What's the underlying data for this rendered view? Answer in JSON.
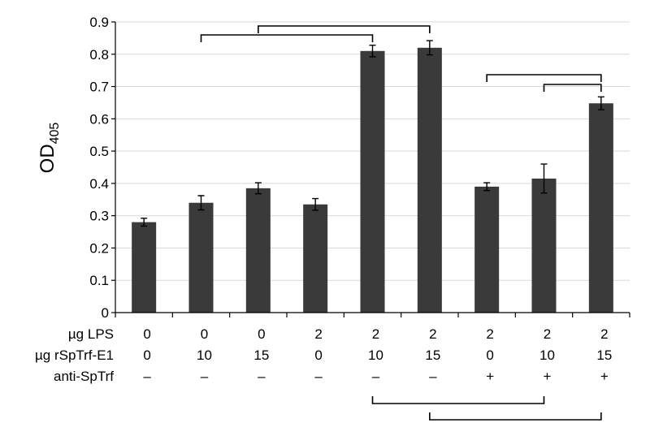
{
  "chart_data": {
    "type": "bar",
    "ylabel": "OD",
    "ylabel_sub": "405",
    "ylim": [
      0,
      0.9
    ],
    "yticks": [
      "0",
      "0.1",
      "0.2",
      "0.3",
      "0.4",
      "0.5",
      "0.6",
      "0.7",
      "0.8",
      "0.9"
    ],
    "grid": true,
    "values": [
      0.28,
      0.34,
      0.385,
      0.335,
      0.81,
      0.82,
      0.39,
      0.415,
      0.648
    ],
    "errors": [
      0.012,
      0.022,
      0.017,
      0.018,
      0.018,
      0.022,
      0.012,
      0.045,
      0.02
    ],
    "condition_rows": [
      {
        "label": "µg LPS",
        "values": [
          "0",
          "0",
          "0",
          "2",
          "2",
          "2",
          "2",
          "2",
          "2"
        ]
      },
      {
        "label": "µg rSpTrf-E1",
        "values": [
          "0",
          "10",
          "15",
          "0",
          "10",
          "15",
          "0",
          "10",
          "15"
        ]
      },
      {
        "label": "anti-SpTrf",
        "values": [
          "–",
          "–",
          "–",
          "–",
          "–",
          "–",
          "+",
          "+",
          "+"
        ]
      }
    ],
    "comparison_brackets_top": [
      [
        1,
        4
      ],
      [
        2,
        5
      ],
      [
        6,
        8
      ],
      [
        7,
        8
      ]
    ],
    "comparison_brackets_bottom": [
      [
        4,
        7
      ],
      [
        5,
        8
      ]
    ]
  }
}
